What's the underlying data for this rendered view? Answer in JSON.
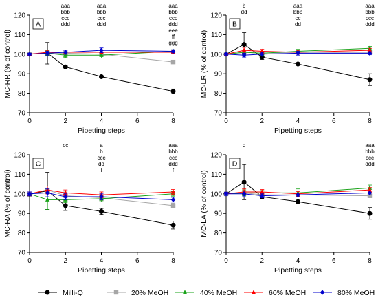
{
  "legend": {
    "placement": "bottom",
    "items": [
      {
        "label": "Milli-Q",
        "color": "#000000",
        "marker": "circle"
      },
      {
        "label": "20% MeOH",
        "color": "#a6a6a6",
        "marker": "square"
      },
      {
        "label": "40% MeOH",
        "color": "#1aa31a",
        "marker": "triangle"
      },
      {
        "label": "60% MeOH",
        "color": "#ff0000",
        "marker": "triangle"
      },
      {
        "label": "80% MeOH",
        "color": "#0000cc",
        "marker": "diamond"
      }
    ]
  },
  "chart_data": [
    {
      "type": "line",
      "panel": "A",
      "xlabel": "Pipetting steps",
      "ylabel": "MC-RR (% of control)",
      "xlim": [
        0,
        8
      ],
      "ylim": [
        70,
        120
      ],
      "xticks": [
        "0",
        "2",
        "4",
        "6",
        "8"
      ],
      "yticks": [
        "70",
        "80",
        "90",
        "100",
        "110",
        "120"
      ],
      "x": [
        0,
        1,
        2,
        4,
        8
      ],
      "series": [
        {
          "name": "Milli-Q",
          "values": [
            100,
            100.5,
            93.5,
            88.5,
            81
          ],
          "errors": [
            0.8,
            5.5,
            0.6,
            0.6,
            1.2
          ]
        },
        {
          "name": "20% MeOH",
          "values": [
            100,
            100.5,
            100.5,
            100,
            96
          ],
          "errors": [
            0.5,
            1.5,
            0.8,
            0.8,
            0.6
          ]
        },
        {
          "name": "40% MeOH",
          "values": [
            100,
            100.5,
            99.5,
            99.5,
            101.5
          ],
          "errors": [
            0.5,
            1.2,
            1.2,
            1.5,
            0.8
          ]
        },
        {
          "name": "60% MeOH",
          "values": [
            100,
            101,
            101,
            101,
            101
          ],
          "errors": [
            0.5,
            1.0,
            1.0,
            0.8,
            0.8
          ]
        },
        {
          "name": "80% MeOH",
          "values": [
            100,
            100.5,
            101,
            102,
            101.5
          ],
          "errors": [
            0.5,
            1.0,
            1.0,
            1.2,
            0.8
          ]
        }
      ],
      "annotations": [
        {
          "x": 2,
          "lines": [
            "aaa",
            "bbb",
            "ccc",
            "ddd"
          ]
        },
        {
          "x": 4,
          "lines": [
            "aaa",
            "bbb",
            "ccc",
            "ddd"
          ]
        },
        {
          "x": 8,
          "lines": [
            "aaa",
            "bbb",
            "ccc",
            "ddd",
            "eee",
            "ff",
            "ggg"
          ]
        }
      ],
      "grid": false
    },
    {
      "type": "line",
      "panel": "B",
      "xlabel": "Pipetting steps",
      "ylabel": "MC-LR (% of control)",
      "xlim": [
        0,
        8
      ],
      "ylim": [
        70,
        120
      ],
      "xticks": [
        "0",
        "2",
        "4",
        "6",
        "8"
      ],
      "yticks": [
        "70",
        "80",
        "90",
        "100",
        "110",
        "120"
      ],
      "x": [
        0,
        1,
        2,
        4,
        8
      ],
      "series": [
        {
          "name": "Milli-Q",
          "values": [
            100,
            105,
            98.5,
            95,
            87
          ],
          "errors": [
            0.8,
            6.0,
            1.2,
            0.6,
            3.0
          ]
        },
        {
          "name": "20% MeOH",
          "values": [
            100,
            101,
            100.5,
            101,
            101
          ],
          "errors": [
            0.5,
            1.0,
            0.8,
            0.8,
            0.8
          ]
        },
        {
          "name": "40% MeOH",
          "values": [
            100,
            101,
            100.5,
            101.5,
            103
          ],
          "errors": [
            0.5,
            1.2,
            1.0,
            1.0,
            1.0
          ]
        },
        {
          "name": "60% MeOH",
          "values": [
            100,
            102,
            101.5,
            101,
            102
          ],
          "errors": [
            0.5,
            1.5,
            1.0,
            1.0,
            1.0
          ]
        },
        {
          "name": "80% MeOH",
          "values": [
            100,
            99.5,
            100,
            100.5,
            100.5
          ],
          "errors": [
            0.5,
            1.0,
            1.0,
            1.0,
            0.8
          ]
        }
      ],
      "annotations": [
        {
          "x": 1,
          "lines": [
            "b",
            "dd"
          ]
        },
        {
          "x": 4,
          "lines": [
            "aaa",
            "bbb",
            "cc",
            "dd"
          ]
        },
        {
          "x": 8,
          "lines": [
            "aaa",
            "bbb",
            "ccc",
            "ddd"
          ]
        }
      ],
      "grid": false
    },
    {
      "type": "line",
      "panel": "C",
      "xlabel": "Pipetting steps",
      "ylabel": "MC-RA (% of control)",
      "xlim": [
        0,
        8
      ],
      "ylim": [
        70,
        120
      ],
      "xticks": [
        "0",
        "2",
        "4",
        "6",
        "8"
      ],
      "yticks": [
        "70",
        "80",
        "90",
        "100",
        "110",
        "120"
      ],
      "x": [
        0,
        1,
        2,
        4,
        8
      ],
      "series": [
        {
          "name": "Milli-Q",
          "values": [
            100,
            101.5,
            94,
            91,
            84
          ],
          "errors": [
            1.5,
            9.5,
            2.5,
            1.5,
            2.0
          ]
        },
        {
          "name": "20% MeOH",
          "values": [
            100,
            102,
            99,
            98,
            94
          ],
          "errors": [
            1.0,
            2.0,
            2.0,
            1.5,
            1.2
          ]
        },
        {
          "name": "40% MeOH",
          "values": [
            100,
            97,
            97,
            97.5,
            100
          ],
          "errors": [
            1.0,
            5.0,
            1.5,
            1.5,
            1.2
          ]
        },
        {
          "name": "60% MeOH",
          "values": [
            100,
            102,
            100.5,
            99.5,
            101
          ],
          "errors": [
            1.0,
            2.0,
            1.5,
            1.5,
            1.2
          ]
        },
        {
          "name": "80% MeOH",
          "values": [
            100,
            100.5,
            98.5,
            98.5,
            97
          ],
          "errors": [
            1.0,
            2.0,
            1.5,
            1.5,
            1.2
          ]
        }
      ],
      "annotations": [
        {
          "x": 2,
          "lines": [
            "cc"
          ]
        },
        {
          "x": 4,
          "lines": [
            "a",
            "b",
            "ccc",
            "dd",
            "f"
          ]
        },
        {
          "x": 8,
          "lines": [
            "aaa",
            "bbb",
            "ccc",
            "ddd",
            "f"
          ]
        }
      ],
      "grid": false
    },
    {
      "type": "line",
      "panel": "D",
      "xlabel": "Pipetting steps",
      "ylabel": "MC-LA (% of control)",
      "xlim": [
        0,
        8
      ],
      "ylim": [
        70,
        120
      ],
      "xticks": [
        "0",
        "2",
        "4",
        "6",
        "8"
      ],
      "yticks": [
        "70",
        "80",
        "90",
        "100",
        "110",
        "120"
      ],
      "x": [
        0,
        1,
        2,
        4,
        8
      ],
      "series": [
        {
          "name": "Milli-Q",
          "values": [
            100,
            106,
            98.5,
            96,
            90
          ],
          "errors": [
            1.0,
            9.0,
            1.0,
            0.8,
            3.0
          ]
        },
        {
          "name": "20% MeOH",
          "values": [
            100,
            100.5,
            99.5,
            99.5,
            99
          ],
          "errors": [
            0.8,
            1.5,
            1.0,
            1.0,
            1.0
          ]
        },
        {
          "name": "40% MeOH",
          "values": [
            100,
            100.5,
            100.5,
            100.5,
            103
          ],
          "errors": [
            0.8,
            1.5,
            1.2,
            2.0,
            1.5
          ]
        },
        {
          "name": "60% MeOH",
          "values": [
            100,
            101,
            101,
            100,
            102
          ],
          "errors": [
            0.8,
            1.5,
            1.2,
            1.2,
            1.2
          ]
        },
        {
          "name": "80% MeOH",
          "values": [
            100,
            100,
            99,
            99.5,
            100.5
          ],
          "errors": [
            0.8,
            1.5,
            1.0,
            1.0,
            1.0
          ]
        }
      ],
      "annotations": [
        {
          "x": 1,
          "lines": [
            "d"
          ]
        },
        {
          "x": 8,
          "lines": [
            "aaa",
            "bbb",
            "ccc",
            "ddd"
          ]
        }
      ],
      "grid": false
    }
  ]
}
